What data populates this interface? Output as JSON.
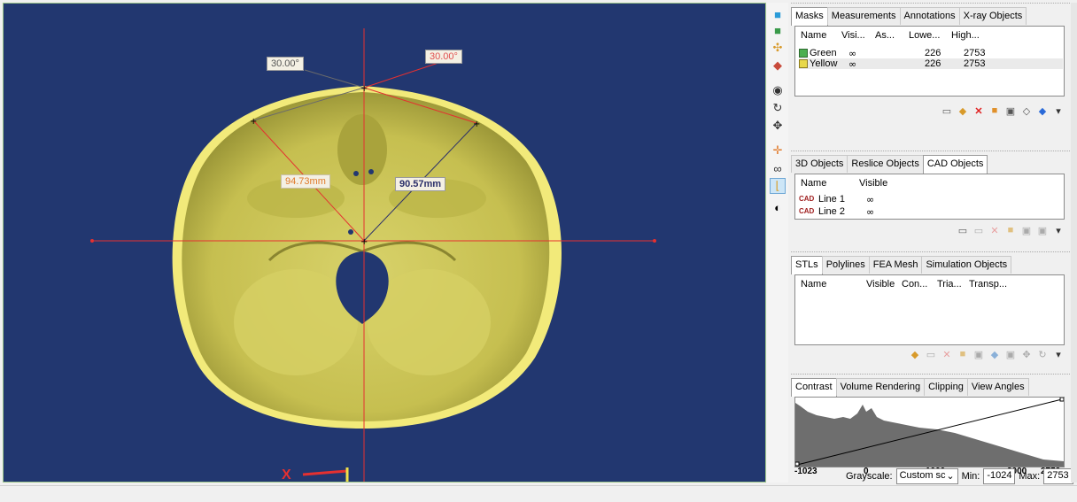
{
  "viewport": {
    "measurements": {
      "angle_left": "30.00°",
      "angle_right": "30.00°",
      "dist_left": "94.73mm",
      "dist_right": "90.57mm"
    },
    "axis_label": "X"
  },
  "toolbar": {
    "tools": [
      "layers-cube-icon",
      "box-icon",
      "crosshair-box-icon",
      "paint-icon",
      "eye-icon",
      "rotate-icon",
      "move-icon",
      "cross-axes-icon",
      "glasses-icon",
      "corner-axes-icon",
      "contrast-icon"
    ]
  },
  "masks_panel": {
    "tabs": [
      "Masks",
      "Measurements",
      "Annotations",
      "X-ray Objects"
    ],
    "columns": [
      "Name",
      "Visi...",
      "As...",
      "Lowe...",
      "High..."
    ],
    "rows": [
      {
        "name": "Green",
        "color": "#4caf50",
        "lower": "226",
        "higher": "2753"
      },
      {
        "name": "Yellow",
        "color": "#e8d84a",
        "lower": "226",
        "higher": "2753"
      }
    ]
  },
  "objects_panel": {
    "tabs": [
      "3D Objects",
      "Reslice Objects",
      "CAD Objects"
    ],
    "columns": [
      "Name",
      "Visible"
    ],
    "rows": [
      {
        "name": "Line 1"
      },
      {
        "name": "Line 2"
      }
    ]
  },
  "stl_panel": {
    "tabs": [
      "STLs",
      "Polylines",
      "FEA Mesh",
      "Simulation Objects"
    ],
    "columns": [
      "Name",
      "Visible",
      "Con...",
      "Tria...",
      "Transp..."
    ]
  },
  "contrast_panel": {
    "tabs": [
      "Contrast",
      "Volume Rendering",
      "Clipping",
      "View Angles"
    ],
    "ticks": [
      "-1023",
      "0",
      "1000",
      "2000",
      "2753"
    ],
    "grayscale_label": "Grayscale:",
    "grayscale_value": "Custom sc",
    "min_label": "Min:",
    "min_value": "-1024",
    "max_label": "Max:",
    "max_value": "2753"
  },
  "colors": {
    "viewport_bg": "#223770",
    "skull_fill": "#cdc758",
    "skull_rim": "#f2ea7a",
    "measure_line": "#e53030"
  }
}
